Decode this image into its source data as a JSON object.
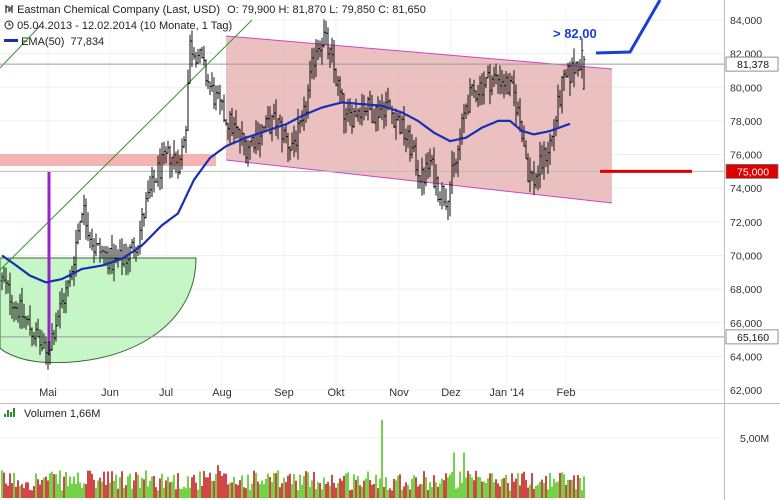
{
  "header": {
    "title_line": "Eastman Chemical Company (Last, USD)",
    "ohlc": "O: 79,900  H: 81,870  L: 79,850  C: 81,650",
    "period_line": "05.04.2013 - 12.02.2014 (10 Monate, 1 Tag)",
    "ema_label": "EMA(50)",
    "ema_value": "77,834",
    "ema_color": "#1a2fb0",
    "icons": [
      "candlestick-icon",
      "clock-icon"
    ]
  },
  "chart_data": {
    "type": "line",
    "title": "Eastman Chemical Company (Last, USD)",
    "subtitle": "05.04.2013 - 12.02.2014 (10 Monate, 1 Tag)",
    "price_axis": {
      "ylim": [
        62,
        85
      ],
      "ticks": [
        "62,000",
        "64,000",
        "66,000",
        "68,000",
        "70,000",
        "72,000",
        "74,000",
        "76,000",
        "78,000",
        "80,000",
        "82,000",
        "84,000"
      ],
      "tick_values": [
        62,
        64,
        66,
        68,
        70,
        72,
        74,
        76,
        78,
        80,
        82,
        84
      ]
    },
    "x_ticks": [
      "Mai",
      "Jun",
      "Jul",
      "Aug",
      "Sep",
      "Okt",
      "Nov",
      "Dez",
      "Jan '14",
      "Feb"
    ],
    "price_series": {
      "name": "Eastman Chemical Company",
      "anchors": [
        [
          0,
          68.5
        ],
        [
          7,
          67.0
        ],
        [
          18,
          65.0
        ],
        [
          22,
          64.0
        ],
        [
          28,
          66.5
        ],
        [
          34,
          68.5
        ],
        [
          40,
          73.0
        ],
        [
          46,
          70.5
        ],
        [
          52,
          70.0
        ],
        [
          56,
          69.5
        ],
        [
          63,
          70.0
        ],
        [
          68,
          71.0
        ],
        [
          72,
          73.0
        ],
        [
          78,
          75.0
        ],
        [
          84,
          76.0
        ],
        [
          89,
          75.5
        ],
        [
          92,
          78.0
        ],
        [
          94,
          82.5
        ],
        [
          98,
          82.0
        ],
        [
          104,
          80.0
        ],
        [
          110,
          78.5
        ],
        [
          116,
          77.5
        ],
        [
          122,
          76.5
        ],
        [
          130,
          77.5
        ],
        [
          137,
          78.0
        ],
        [
          144,
          76.5
        ],
        [
          150,
          77.5
        ],
        [
          157,
          82.5
        ],
        [
          161,
          83.0
        ],
        [
          166,
          81.0
        ],
        [
          172,
          78.0
        ],
        [
          180,
          79.0
        ],
        [
          186,
          78.5
        ],
        [
          192,
          79.0
        ],
        [
          198,
          78.0
        ],
        [
          204,
          76.5
        ],
        [
          210,
          74.5
        ],
        [
          214,
          75.5
        ],
        [
          218,
          74.0
        ],
        [
          222,
          73.5
        ],
        [
          227,
          75.5
        ],
        [
          232,
          79.0
        ],
        [
          238,
          80.0
        ],
        [
          244,
          80.5
        ],
        [
          250,
          80.5
        ],
        [
          256,
          79.5
        ],
        [
          260,
          77.5
        ],
        [
          263,
          75.0
        ],
        [
          266,
          74.5
        ],
        [
          270,
          75.5
        ],
        [
          275,
          77.0
        ],
        [
          280,
          80.0
        ],
        [
          284,
          80.8
        ],
        [
          288,
          81.6
        ]
      ],
      "last": 81.65,
      "open": 79.9,
      "high": 81.87,
      "low": 79.85
    },
    "ema_series": {
      "name": "EMA(50)",
      "anchors": [
        [
          0,
          70.0
        ],
        [
          6,
          69.5
        ],
        [
          14,
          68.8
        ],
        [
          22,
          68.4
        ],
        [
          30,
          68.6
        ],
        [
          40,
          69.2
        ],
        [
          50,
          69.4
        ],
        [
          60,
          69.8
        ],
        [
          70,
          70.6
        ],
        [
          80,
          71.8
        ],
        [
          88,
          72.5
        ],
        [
          96,
          74.5
        ],
        [
          104,
          75.8
        ],
        [
          112,
          76.5
        ],
        [
          122,
          77.0
        ],
        [
          132,
          77.4
        ],
        [
          142,
          77.8
        ],
        [
          150,
          78.3
        ],
        [
          160,
          78.8
        ],
        [
          170,
          79.1
        ],
        [
          180,
          79.0
        ],
        [
          190,
          78.9
        ],
        [
          200,
          78.5
        ],
        [
          208,
          78.0
        ],
        [
          216,
          77.3
        ],
        [
          224,
          76.8
        ],
        [
          232,
          77.0
        ],
        [
          240,
          77.6
        ],
        [
          248,
          78.0
        ],
        [
          254,
          78.0
        ],
        [
          260,
          77.4
        ],
        [
          266,
          77.2
        ],
        [
          274,
          77.4
        ],
        [
          284,
          77.83
        ]
      ]
    },
    "markers": [
      {
        "label": "81,378",
        "value": 81.378,
        "color": "#333333"
      },
      {
        "label": "75,000",
        "value": 75.0,
        "color": "#dd0000"
      },
      {
        "label": "65,160",
        "value": 65.16,
        "color": "#333333"
      }
    ],
    "target_label": "> 82,00",
    "volume": {
      "label": "Volumen",
      "value_label": "1,66M",
      "axis_tick": "5,00M",
      "axis_tick_value": 5.0,
      "max": 6.5,
      "up_color": "#66cc33",
      "down_color": "#cc3333"
    },
    "colors": {
      "channel_fill": "#e8b5b5",
      "channel_edge": "#cc44cc",
      "support_fill": "#c6f5c6",
      "resistance_band": "#f3a7a7",
      "trendline": "#2f9a2f",
      "bar_color": "#111111",
      "target_line": "#1a3fd6",
      "low_marker": "#9a22cc"
    }
  }
}
